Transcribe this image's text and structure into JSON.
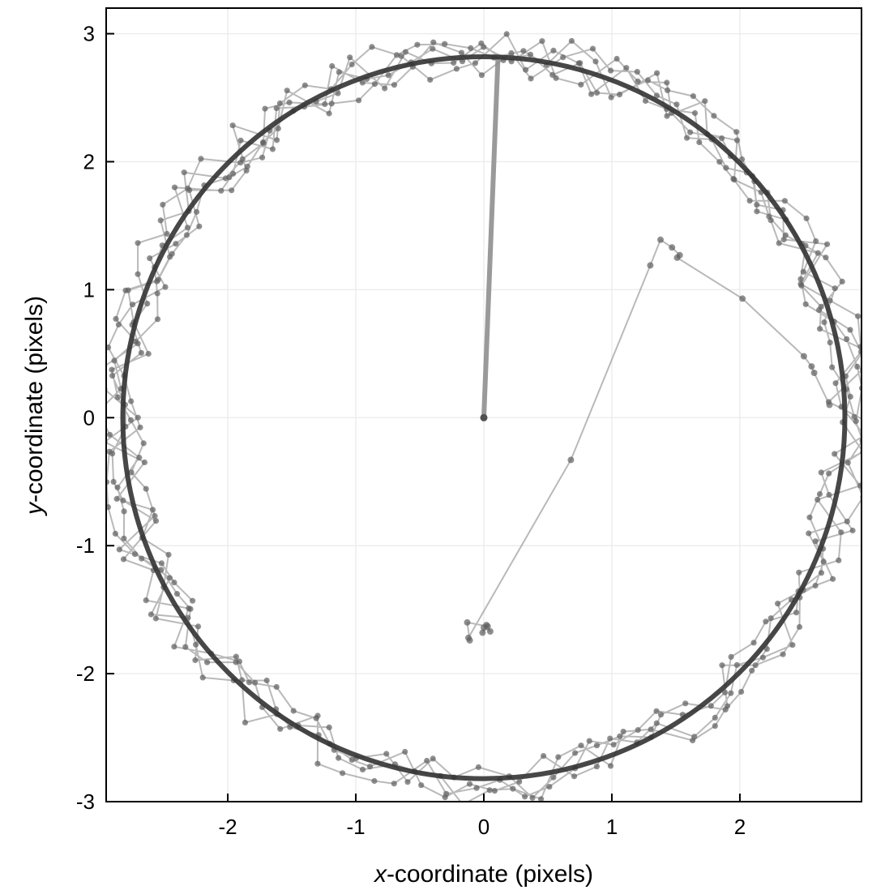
{
  "chart_data": {
    "type": "scatter",
    "title": "",
    "xlabel": {
      "var": "x",
      "rest": "-coordinate (pixels)"
    },
    "ylabel": {
      "var": "y",
      "rest": "-coordinate (pixels)"
    },
    "xlim": [
      -2.95,
      2.95
    ],
    "ylim": [
      -3.0,
      3.2
    ],
    "x_ticks": [
      -2,
      -1,
      0,
      1,
      2
    ],
    "y_ticks": [
      -3,
      -2,
      -1,
      0,
      1,
      2,
      3
    ],
    "x_tick_labels": [
      "-2",
      "-1",
      "0",
      "1",
      "2"
    ],
    "y_tick_labels": [
      "-3",
      "-2",
      "-1",
      "0",
      "1",
      "2",
      "3"
    ],
    "grid": true,
    "legend": "none",
    "colors": {
      "trajectory": "#8a8a8a",
      "reference_circle": "#333333",
      "point": "#606060"
    },
    "reference_circle": {
      "cx": 0,
      "cy": 0,
      "r": 2.82
    },
    "series": [
      {
        "kind": "spoke",
        "x": [
          0.0,
          0.11
        ],
        "y": [
          0.0,
          2.8
        ]
      },
      {
        "kind": "jump",
        "x": [
          0.0,
          0.05,
          0.02,
          -0.01,
          0.03,
          -0.13,
          -0.11,
          -0.12,
          0.68,
          1.3,
          1.38,
          1.47,
          1.53,
          1.51,
          2.02,
          2.5,
          2.56,
          2.58,
          2.7
        ],
        "y": [
          -1.64,
          -1.67,
          -1.62,
          -1.68,
          -1.63,
          -1.6,
          -1.74,
          -1.72,
          -0.33,
          1.19,
          1.39,
          1.33,
          1.27,
          1.25,
          0.93,
          0.48,
          0.4,
          0.35,
          0.1
        ]
      },
      {
        "kind": "orbit",
        "n_points": 420,
        "radius_mean": 2.82,
        "radius_jitter": 0.19,
        "turns": 4.6
      }
    ]
  }
}
